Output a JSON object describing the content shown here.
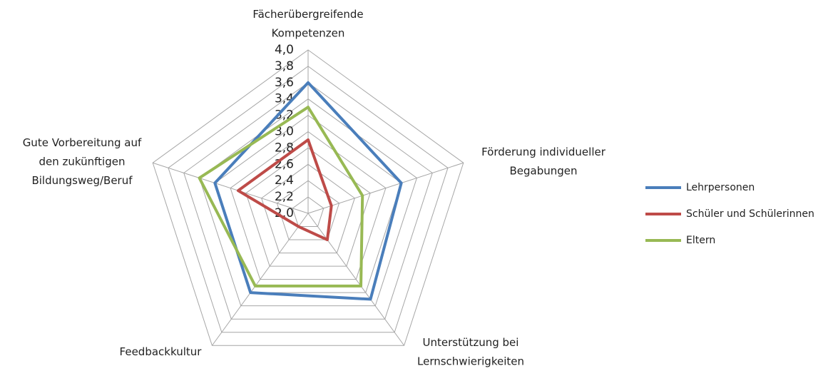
{
  "chart_data": {
    "type": "radar",
    "categories": [
      "Fächerübergreifende\nKompetenzen",
      "Förderung individueller\nBegabungen",
      "Unterstützung bei\nLernschwierigkeiten",
      "Feedbackkultur",
      "Gute Vorbereitung auf\nden zukünftigen\nBildungsweg/Beruf"
    ],
    "series": [
      {
        "name": "Lehrpersonen",
        "color": "#4a7ebb",
        "values": [
          3.6,
          3.2,
          3.3,
          3.2,
          3.2
        ]
      },
      {
        "name": "Schüler und Schülerinnen",
        "color": "#be4b48",
        "values": [
          2.9,
          2.3,
          2.4,
          2.2,
          2.9
        ]
      },
      {
        "name": "Eltern",
        "color": "#98b954",
        "values": [
          3.3,
          2.7,
          3.1,
          3.1,
          3.4
        ]
      }
    ],
    "ylim": [
      2.0,
      4.0
    ],
    "yticks": [
      {
        "value": 2.0,
        "label": "2,0"
      },
      {
        "value": 2.2,
        "label": "2,2"
      },
      {
        "value": 2.4,
        "label": "2,4"
      },
      {
        "value": 2.6,
        "label": "2,6"
      },
      {
        "value": 2.8,
        "label": "2,8"
      },
      {
        "value": 3.0,
        "label": "3,0"
      },
      {
        "value": 3.2,
        "label": "3,2"
      },
      {
        "value": 3.4,
        "label": "3,4"
      },
      {
        "value": 3.6,
        "label": "3,6"
      },
      {
        "value": 3.8,
        "label": "3,8"
      },
      {
        "value": 4.0,
        "label": "4,0"
      }
    ],
    "grid": true,
    "legend": "right"
  }
}
